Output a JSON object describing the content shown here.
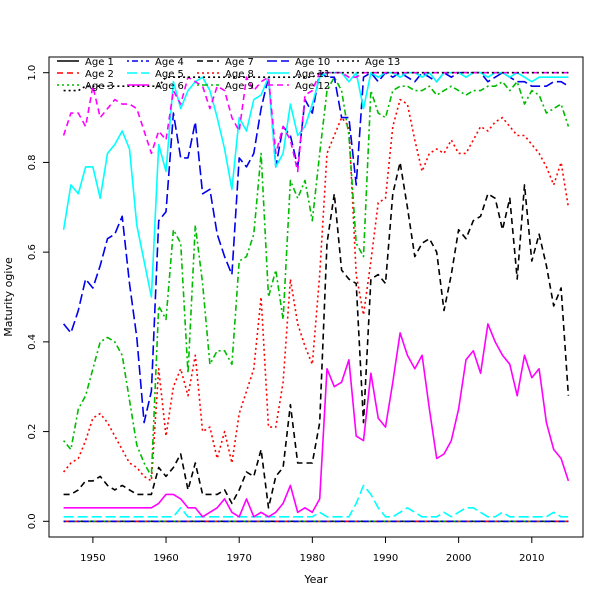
{
  "chart_data": {
    "type": "line",
    "title": "",
    "xlabel": "Year",
    "ylabel": "Maturity ogive",
    "xlim": [
      1944,
      2017
    ],
    "ylim": [
      -0.035,
      1.035
    ],
    "xticks": [
      1950,
      1960,
      1970,
      1980,
      1990,
      2000,
      2010
    ],
    "yticks": [
      0.0,
      0.2,
      0.4,
      0.6,
      0.8,
      1.0
    ],
    "x_start": 1946,
    "x_end": 2015,
    "legend_position": "top-left",
    "series": [
      {
        "name": "Age 1",
        "color": "#000000",
        "dash": "solid",
        "style": "flat",
        "level": 0.0
      },
      {
        "name": "Age 2",
        "color": "#ff0000",
        "dash": "dashed",
        "style": "flat",
        "level": 0.0
      },
      {
        "name": "Age 3",
        "color": "#00bb00",
        "dash": "dotted",
        "style": "flat",
        "level": 0.0
      },
      {
        "name": "Age 4",
        "color": "#0000ee",
        "dash": "dotdash",
        "style": "flat",
        "level": 0.0
      },
      {
        "name": "Age 5",
        "color": "#00ffff",
        "dash": "longdash",
        "style": "flat",
        "level": 0.01
      },
      {
        "name": "Age 6",
        "color": "#ff00ff",
        "dash": "solid",
        "style": "flat",
        "level": 0.03
      },
      {
        "name": "Age 7",
        "color": "#000000",
        "dash": "dashed",
        "style": "flat",
        "level": 0.06
      },
      {
        "name": "Age 8",
        "color": "#ff0000",
        "dash": "dotted",
        "style": "flat",
        "level": 0.11
      },
      {
        "name": "Age 9",
        "color": "#00bb00",
        "dash": "dotdash",
        "style": "flat",
        "level": 0.18
      },
      {
        "name": "Age 10",
        "color": "#0000ee",
        "dash": "longdash",
        "style": "flat",
        "level": 0.44
      },
      {
        "name": "Age 11",
        "color": "#00ffff",
        "dash": "solid",
        "style": "flat",
        "level": 0.65
      },
      {
        "name": "Age 12",
        "color": "#ff00ff",
        "dash": "dashed",
        "style": "flat",
        "level": 0.86
      },
      {
        "name": "Age 13",
        "color": "#000000",
        "dash": "dotted",
        "style": "flat",
        "level": 1.0
      }
    ],
    "plotted": [
      {
        "name": "Age 1",
        "color": "#000000",
        "dash": "solid",
        "y": [
          0,
          0,
          0,
          0,
          0,
          0,
          0,
          0,
          0,
          0,
          0,
          0,
          0,
          0,
          0,
          0,
          0,
          0,
          0,
          0,
          0,
          0,
          0,
          0,
          0,
          0,
          0,
          0,
          0,
          0,
          0,
          0,
          0,
          0,
          0,
          0,
          0,
          0,
          0,
          0,
          0,
          0,
          0,
          0,
          0,
          0,
          0,
          0,
          0,
          0,
          0,
          0,
          0,
          0,
          0,
          0,
          0,
          0,
          0,
          0,
          0,
          0,
          0,
          0,
          0,
          0,
          0,
          0,
          0,
          0
        ]
      },
      {
        "name": "Age 2",
        "color": "#ff0000",
        "dash": "dashed",
        "y": [
          0,
          0,
          0,
          0,
          0,
          0,
          0,
          0,
          0,
          0,
          0,
          0,
          0,
          0,
          0,
          0,
          0,
          0,
          0,
          0,
          0,
          0,
          0,
          0,
          0,
          0,
          0,
          0,
          0,
          0,
          0,
          0,
          0,
          0,
          0,
          0,
          0,
          0,
          0,
          0,
          0,
          0,
          0,
          0,
          0,
          0,
          0,
          0,
          0,
          0,
          0,
          0,
          0,
          0,
          0,
          0,
          0,
          0,
          0,
          0,
          0,
          0,
          0,
          0,
          0,
          0,
          0,
          0,
          0,
          0
        ]
      },
      {
        "name": "Age 3",
        "color": "#00bb00",
        "dash": "dotted",
        "y": [
          0,
          0,
          0,
          0,
          0,
          0,
          0,
          0,
          0,
          0,
          0,
          0,
          0,
          0,
          0,
          0,
          0,
          0,
          0,
          0,
          0,
          0,
          0,
          0,
          0,
          0,
          0,
          0,
          0,
          0,
          0,
          0,
          0,
          0,
          0,
          0,
          0,
          0,
          0,
          0,
          0,
          0,
          0,
          0,
          0,
          0,
          0,
          0,
          0,
          0,
          0,
          0,
          0,
          0,
          0,
          0,
          0,
          0,
          0,
          0,
          0,
          0,
          0,
          0,
          0,
          0,
          0,
          0,
          0,
          0
        ]
      },
      {
        "name": "Age 4",
        "color": "#0000ee",
        "dash": "dotdash",
        "y": [
          0,
          0,
          0,
          0,
          0,
          0,
          0,
          0,
          0,
          0,
          0,
          0,
          0,
          0,
          0,
          0,
          0,
          0,
          0,
          0,
          0,
          0,
          0,
          0,
          0,
          0,
          0,
          0,
          0,
          0,
          0,
          0,
          0,
          0,
          0,
          0,
          0,
          0,
          0,
          0,
          0,
          0,
          0,
          0,
          0,
          0,
          0,
          0,
          0,
          0,
          0,
          0,
          0,
          0,
          0,
          0,
          0,
          0,
          0,
          0,
          0,
          0,
          0,
          0,
          0,
          0,
          0,
          0,
          0,
          0
        ]
      },
      {
        "name": "Age 5",
        "color": "#00ffff",
        "dash": "longdash",
        "y": [
          0.01,
          0.01,
          0.01,
          0.01,
          0.01,
          0.01,
          0.01,
          0.01,
          0.01,
          0.01,
          0.01,
          0.01,
          0.01,
          0.01,
          0.01,
          0.01,
          0.03,
          0.01,
          0.01,
          0.01,
          0.01,
          0.01,
          0.01,
          0.01,
          0.01,
          0.01,
          0.01,
          0.01,
          0.01,
          0.01,
          0.01,
          0.01,
          0.01,
          0.01,
          0.01,
          0.02,
          0.01,
          0.01,
          0.01,
          0.01,
          0.04,
          0.08,
          0.06,
          0.03,
          0.01,
          0.01,
          0.02,
          0.03,
          0.02,
          0.01,
          0.01,
          0.01,
          0.02,
          0.01,
          0.02,
          0.03,
          0.03,
          0.02,
          0.01,
          0.01,
          0.02,
          0.01,
          0.01,
          0.01,
          0.01,
          0.01,
          0.01,
          0.02,
          0.01,
          0.01
        ]
      },
      {
        "name": "Age 6",
        "color": "#ff00ff",
        "dash": "solid",
        "y": [
          0.03,
          0.03,
          0.03,
          0.03,
          0.03,
          0.03,
          0.03,
          0.03,
          0.03,
          0.03,
          0.03,
          0.03,
          0.03,
          0.04,
          0.06,
          0.06,
          0.05,
          0.03,
          0.03,
          0.01,
          0.02,
          0.03,
          0.05,
          0.02,
          0.01,
          0.05,
          0.01,
          0.02,
          0.01,
          0.02,
          0.04,
          0.08,
          0.02,
          0.03,
          0.02,
          0.05,
          0.34,
          0.3,
          0.31,
          0.36,
          0.19,
          0.18,
          0.33,
          0.23,
          0.21,
          0.31,
          0.42,
          0.37,
          0.34,
          0.37,
          0.25,
          0.14,
          0.15,
          0.18,
          0.25,
          0.36,
          0.38,
          0.33,
          0.44,
          0.4,
          0.37,
          0.35,
          0.28,
          0.37,
          0.32,
          0.34,
          0.22,
          0.16,
          0.14,
          0.09
        ]
      },
      {
        "name": "Age 7",
        "color": "#000000",
        "dash": "dashed",
        "y": [
          0.06,
          0.06,
          0.07,
          0.09,
          0.09,
          0.1,
          0.08,
          0.07,
          0.08,
          0.07,
          0.06,
          0.06,
          0.06,
          0.12,
          0.1,
          0.12,
          0.15,
          0.07,
          0.13,
          0.06,
          0.06,
          0.06,
          0.07,
          0.04,
          0.07,
          0.11,
          0.1,
          0.16,
          0.03,
          0.1,
          0.12,
          0.26,
          0.13,
          0.13,
          0.13,
          0.22,
          0.62,
          0.73,
          0.56,
          0.54,
          0.53,
          0.22,
          0.54,
          0.55,
          0.53,
          0.73,
          0.8,
          0.7,
          0.59,
          0.62,
          0.63,
          0.6,
          0.47,
          0.55,
          0.65,
          0.63,
          0.67,
          0.68,
          0.73,
          0.72,
          0.65,
          0.72,
          0.54,
          0.75,
          0.58,
          0.64,
          0.57,
          0.48,
          0.52,
          0.28
        ]
      },
      {
        "name": "Age 8",
        "color": "#ff0000",
        "dash": "dotted",
        "y": [
          0.11,
          0.13,
          0.14,
          0.18,
          0.23,
          0.24,
          0.22,
          0.19,
          0.16,
          0.13,
          0.12,
          0.1,
          0.09,
          0.34,
          0.19,
          0.3,
          0.34,
          0.28,
          0.37,
          0.2,
          0.21,
          0.14,
          0.2,
          0.13,
          0.24,
          0.29,
          0.34,
          0.5,
          0.21,
          0.21,
          0.31,
          0.54,
          0.44,
          0.39,
          0.35,
          0.55,
          0.82,
          0.86,
          0.9,
          0.88,
          0.55,
          0.46,
          0.58,
          0.71,
          0.72,
          0.88,
          0.94,
          0.93,
          0.85,
          0.78,
          0.82,
          0.83,
          0.82,
          0.85,
          0.82,
          0.82,
          0.85,
          0.88,
          0.87,
          0.89,
          0.9,
          0.88,
          0.86,
          0.86,
          0.84,
          0.82,
          0.79,
          0.75,
          0.8,
          0.7
        ]
      },
      {
        "name": "Age 9",
        "color": "#00bb00",
        "dash": "dotdash",
        "y": [
          0.18,
          0.16,
          0.25,
          0.28,
          0.34,
          0.4,
          0.41,
          0.4,
          0.37,
          0.27,
          0.17,
          0.13,
          0.1,
          0.48,
          0.45,
          0.65,
          0.62,
          0.33,
          0.66,
          0.53,
          0.35,
          0.38,
          0.38,
          0.35,
          0.58,
          0.59,
          0.64,
          0.82,
          0.5,
          0.56,
          0.45,
          0.76,
          0.72,
          0.76,
          0.67,
          0.82,
          0.96,
          0.99,
          0.96,
          0.86,
          0.62,
          0.59,
          0.96,
          0.91,
          0.9,
          0.96,
          0.97,
          0.97,
          0.96,
          0.96,
          0.97,
          0.95,
          0.96,
          0.97,
          0.96,
          0.95,
          0.96,
          0.96,
          0.97,
          0.97,
          0.98,
          0.96,
          0.98,
          0.93,
          0.96,
          0.95,
          0.91,
          0.92,
          0.93,
          0.88
        ]
      },
      {
        "name": "Age 10",
        "color": "#0000ee",
        "dash": "longdash",
        "y": [
          0.44,
          0.42,
          0.47,
          0.54,
          0.52,
          0.57,
          0.63,
          0.64,
          0.68,
          0.53,
          0.41,
          0.22,
          0.29,
          0.67,
          0.69,
          0.91,
          0.81,
          0.81,
          0.89,
          0.73,
          0.74,
          0.64,
          0.59,
          0.55,
          0.81,
          0.79,
          0.82,
          0.92,
          0.99,
          0.79,
          0.88,
          0.86,
          0.79,
          0.94,
          0.91,
          1.0,
          0.99,
          0.99,
          0.9,
          0.9,
          0.75,
          0.99,
          1.0,
          0.98,
          1.0,
          0.99,
          1.0,
          0.99,
          0.98,
          1.0,
          0.99,
          0.98,
          1.0,
          0.99,
          1.0,
          1.0,
          1.0,
          1.0,
          0.98,
          0.99,
          1.0,
          0.99,
          0.98,
          0.98,
          0.97,
          0.97,
          0.97,
          0.98,
          0.98,
          0.97
        ]
      },
      {
        "name": "Age 11",
        "color": "#00ffff",
        "dash": "solid",
        "y": [
          0.65,
          0.75,
          0.73,
          0.79,
          0.79,
          0.72,
          0.82,
          0.84,
          0.87,
          0.83,
          0.66,
          0.58,
          0.5,
          0.84,
          0.78,
          0.98,
          0.92,
          0.96,
          0.98,
          0.99,
          0.96,
          0.9,
          0.83,
          0.74,
          0.9,
          0.87,
          0.94,
          0.95,
          0.99,
          0.79,
          0.82,
          0.93,
          0.86,
          0.88,
          0.93,
          0.99,
          1.0,
          1.0,
          1.0,
          0.98,
          1.0,
          0.92,
          1.0,
          0.99,
          1.0,
          1.0,
          0.99,
          1.0,
          1.0,
          0.99,
          1.0,
          0.98,
          1.0,
          1.0,
          1.0,
          0.99,
          1.0,
          1.0,
          0.99,
          1.0,
          1.0,
          0.99,
          1.0,
          0.99,
          0.98,
          0.99,
          0.99,
          0.99,
          0.99,
          0.99
        ]
      },
      {
        "name": "Age 12",
        "color": "#ff00ff",
        "dash": "dashed",
        "y": [
          0.86,
          0.91,
          0.91,
          0.88,
          0.97,
          0.9,
          0.92,
          0.94,
          0.93,
          0.93,
          0.92,
          0.87,
          0.82,
          0.87,
          0.85,
          0.96,
          0.93,
          0.99,
          0.98,
          0.97,
          0.92,
          0.97,
          0.96,
          0.9,
          0.87,
          0.99,
          0.96,
          0.98,
          0.99,
          0.82,
          0.88,
          0.85,
          0.78,
          0.95,
          0.96,
          1.0,
          1.0,
          1.0,
          1.0,
          0.99,
          0.99,
          1.0,
          1.0,
          1.0,
          1.0,
          1.0,
          1.0,
          1.0,
          1.0,
          1.0,
          1.0,
          1.0,
          1.0,
          1.0,
          1.0,
          1.0,
          1.0,
          1.0,
          1.0,
          1.0,
          1.0,
          1.0,
          1.0,
          1.0,
          1.0,
          1.0,
          1.0,
          1.0,
          1.0,
          1.0
        ]
      },
      {
        "name": "Age 13",
        "color": "#000000",
        "dash": "dotted",
        "y": [
          0.96,
          0.96,
          0.96,
          0.97,
          0.97,
          0.97,
          0.97,
          0.97,
          0.97,
          0.97,
          0.97,
          0.97,
          0.97,
          0.97,
          0.99,
          0.99,
          0.99,
          0.99,
          0.99,
          0.99,
          0.99,
          0.99,
          0.99,
          0.99,
          0.99,
          0.99,
          0.99,
          0.99,
          0.99,
          0.99,
          0.99,
          0.99,
          0.99,
          0.99,
          0.99,
          1.0,
          1.0,
          1.0,
          1.0,
          1.0,
          1.0,
          1.0,
          1.0,
          1.0,
          1.0,
          1.0,
          1.0,
          1.0,
          1.0,
          1.0,
          1.0,
          1.0,
          1.0,
          1.0,
          1.0,
          1.0,
          1.0,
          1.0,
          1.0,
          1.0,
          1.0,
          1.0,
          1.0,
          1.0,
          1.0,
          1.0,
          1.0,
          1.0,
          1.0,
          1.0
        ]
      }
    ]
  }
}
